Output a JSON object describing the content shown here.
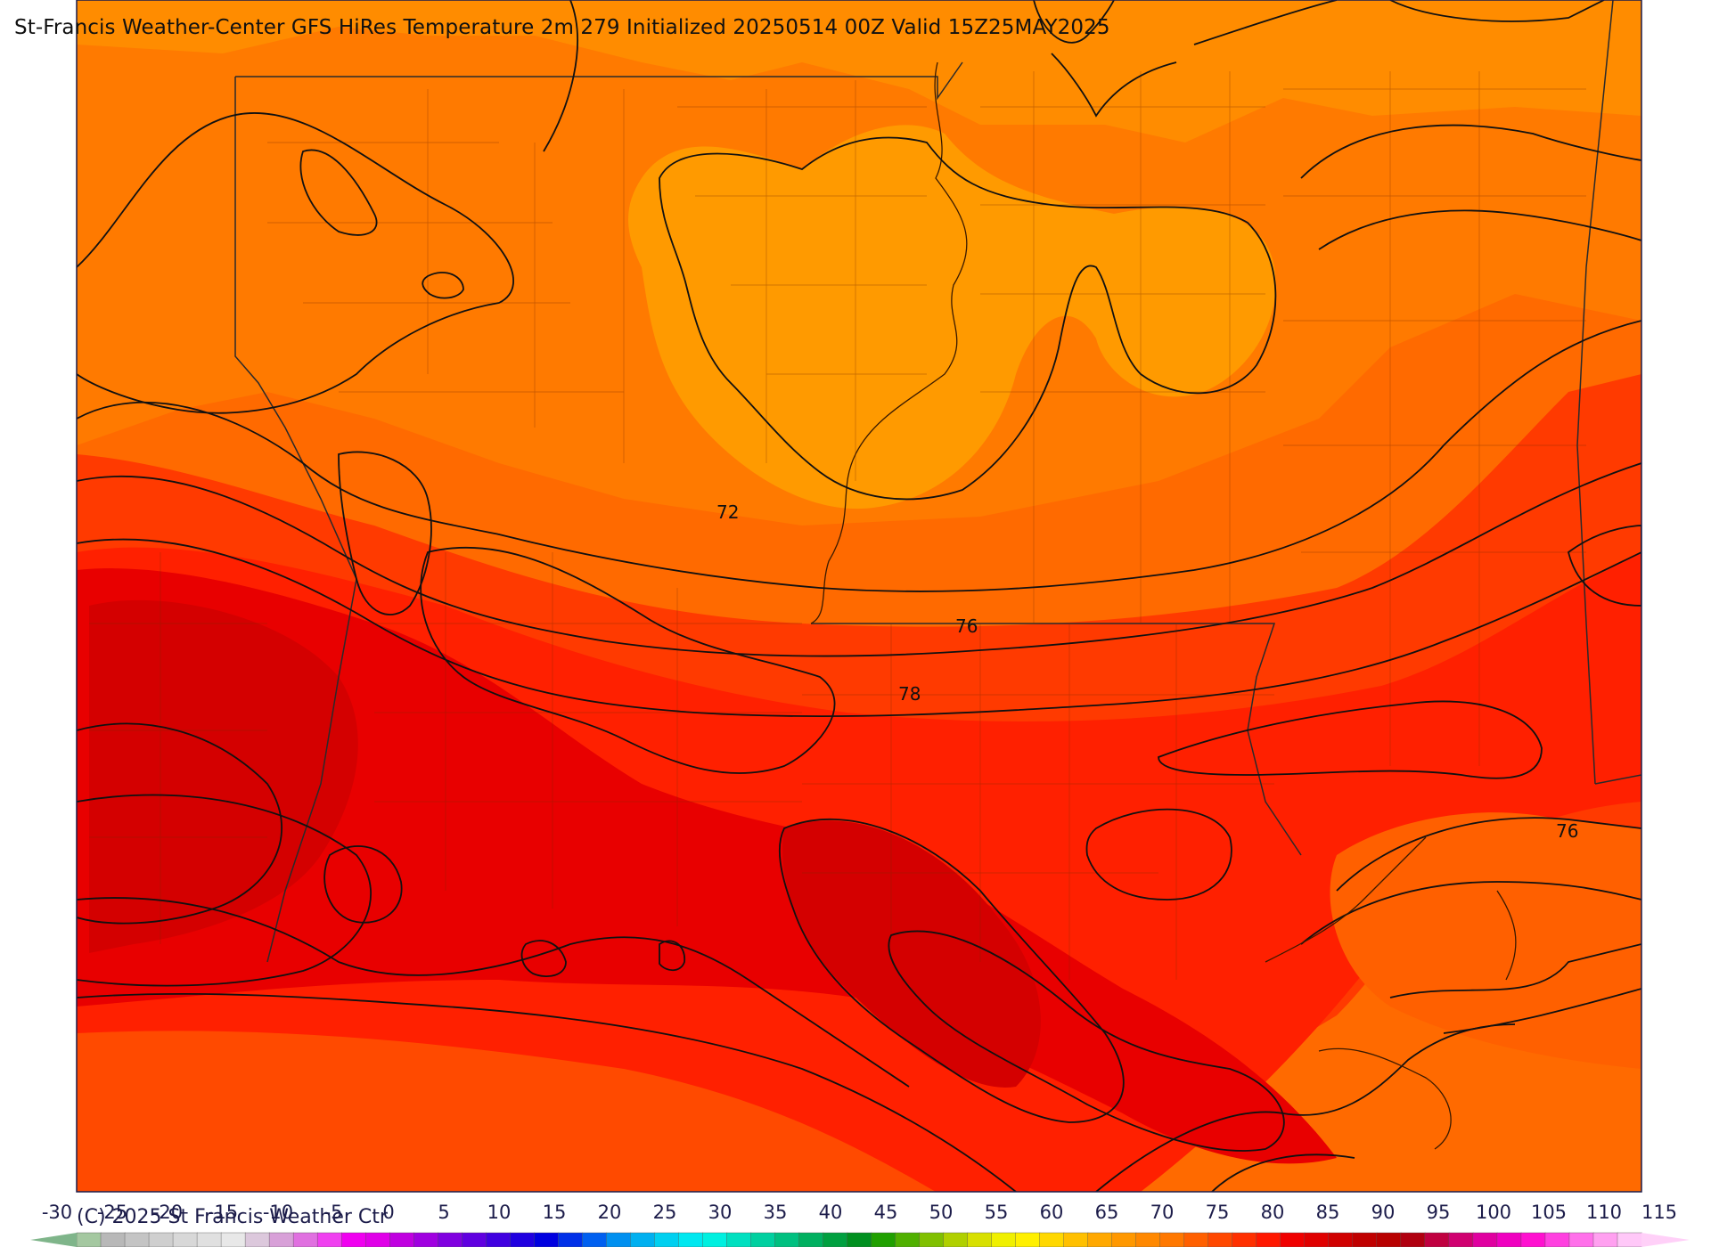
{
  "title": "St-Francis Weather-Center GFS HiRes Temperature 2m  279 Initialized 20250514 00Z Valid 15Z25MAY2025",
  "copyright": "(C) 2025 St Francis Weather Ctr",
  "contour_labels": [
    "72",
    "76",
    "78",
    "76"
  ],
  "colorbar": {
    "ticks": [
      "-30",
      "-25",
      "-20",
      "-15",
      "-10",
      "-5",
      "0",
      "5",
      "10",
      "15",
      "20",
      "25",
      "30",
      "35",
      "40",
      "45",
      "50",
      "55",
      "60",
      "65",
      "70",
      "75",
      "80",
      "85",
      "90",
      "95",
      "100",
      "105",
      "110",
      "115"
    ],
    "colors": [
      "#a4c8a0",
      "#b8b8b8",
      "#c4c4c4",
      "#cfcfcf",
      "#d8d8d8",
      "#e0e0e0",
      "#e8e8e8",
      "#dcc8dc",
      "#d8a0d8",
      "#e070e0",
      "#f040f0",
      "#f000f0",
      "#e000e8",
      "#c000e0",
      "#a000e0",
      "#8000e0",
      "#6000e0",
      "#4000e0",
      "#2000e0",
      "#0000e0",
      "#0030e8",
      "#0060f0",
      "#0090f0",
      "#00b0f0",
      "#00d0f0",
      "#00e8f0",
      "#00f0e0",
      "#00e0c0",
      "#00d0a0",
      "#00c080",
      "#00b060",
      "#00a040",
      "#009020",
      "#20a000",
      "#50b000",
      "#80c000",
      "#b0d000",
      "#d8e000",
      "#f0f000",
      "#fff000",
      "#ffd800",
      "#ffc000",
      "#ffa800",
      "#ff9800",
      "#ff8800",
      "#ff7800",
      "#ff6000",
      "#ff4800",
      "#ff3000",
      "#ff1800",
      "#f00000",
      "#e00000",
      "#d00000",
      "#c00000",
      "#b80000",
      "#b00010",
      "#c00040",
      "#d00070",
      "#e000a0",
      "#f000c0",
      "#ff10d0",
      "#ff40e0",
      "#ff70ea",
      "#ffa0f0",
      "#ffc8f8"
    ],
    "left_arrow_color": "#7fb58a",
    "right_arrow_color": "#ffd0f8"
  }
}
